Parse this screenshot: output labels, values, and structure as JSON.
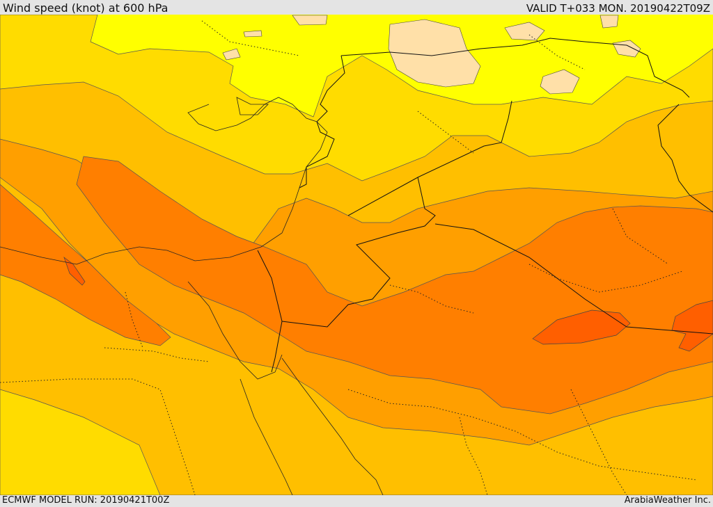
{
  "header": {
    "title": "Wind speed (knot) at 600 hPa",
    "valid": "VALID T+033 MON. 20190422T09Z"
  },
  "footer": {
    "model_run": "ECMWF MODEL RUN: 20190421T00Z",
    "credit": "ArabiaWeather Inc."
  },
  "map": {
    "region": "Middle East",
    "field": "wind speed",
    "level_hpa": 600,
    "colors": {
      "band_0": "#ffe0a8",
      "band_1": "#ffff00",
      "band_2": "#ffdc00",
      "band_3": "#ffbf00",
      "band_4": "#ff9f00",
      "band_5": "#ff7f00",
      "band_6": "#ff5f00"
    }
  }
}
